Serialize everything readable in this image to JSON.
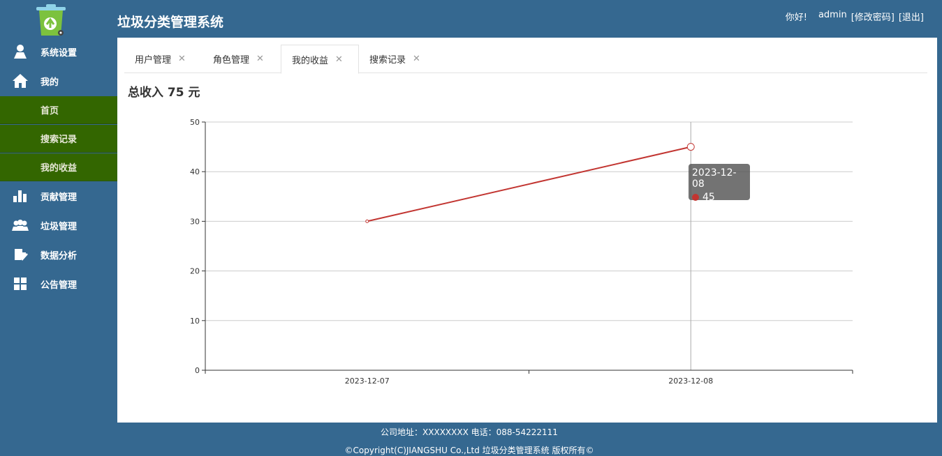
{
  "app": {
    "title": "垃圾分类管理系统"
  },
  "header": {
    "greeting": "你好!",
    "username": "admin",
    "change_password": "[修改密码]",
    "logout": "[退出]"
  },
  "sidebar": {
    "items": [
      {
        "label": "系统设置",
        "icon": "user-icon"
      },
      {
        "label": "我的",
        "icon": "home-icon"
      },
      {
        "label": "贡献管理",
        "icon": "bar-chart-icon"
      },
      {
        "label": "垃圾管理",
        "icon": "group-icon"
      },
      {
        "label": "数据分析",
        "icon": "analysis-icon"
      },
      {
        "label": "公告管理",
        "icon": "grid-icon"
      }
    ],
    "sub_items": [
      {
        "label": "首页"
      },
      {
        "label": "搜索记录"
      },
      {
        "label": "我的收益"
      }
    ]
  },
  "tabs": [
    {
      "label": "用户管理",
      "close": "✕"
    },
    {
      "label": "角色管理",
      "close": "✕"
    },
    {
      "label": "我的收益",
      "close": "✕",
      "active": true
    },
    {
      "label": "搜索记录",
      "close": "✕"
    }
  ],
  "main": {
    "total_income": "总收入 75 元"
  },
  "chart_data": {
    "type": "line",
    "categories": [
      "2023-12-07",
      "2023-12-08"
    ],
    "series": [
      {
        "values": [
          30,
          45
        ],
        "color": "#c23531"
      }
    ],
    "ylim": [
      0,
      50
    ],
    "yticks": [
      "0",
      "10",
      "20",
      "30",
      "40",
      "50"
    ],
    "grid": true,
    "tooltip": {
      "title": "2023-12-08",
      "value": "45"
    }
  },
  "footer": {
    "address": "公司地址：XXXXXXXX 电话：088-54222111",
    "copyright": "©Copyright(C)JIANGSHU Co.,Ltd 垃圾分类管理系统 版权所有©"
  }
}
